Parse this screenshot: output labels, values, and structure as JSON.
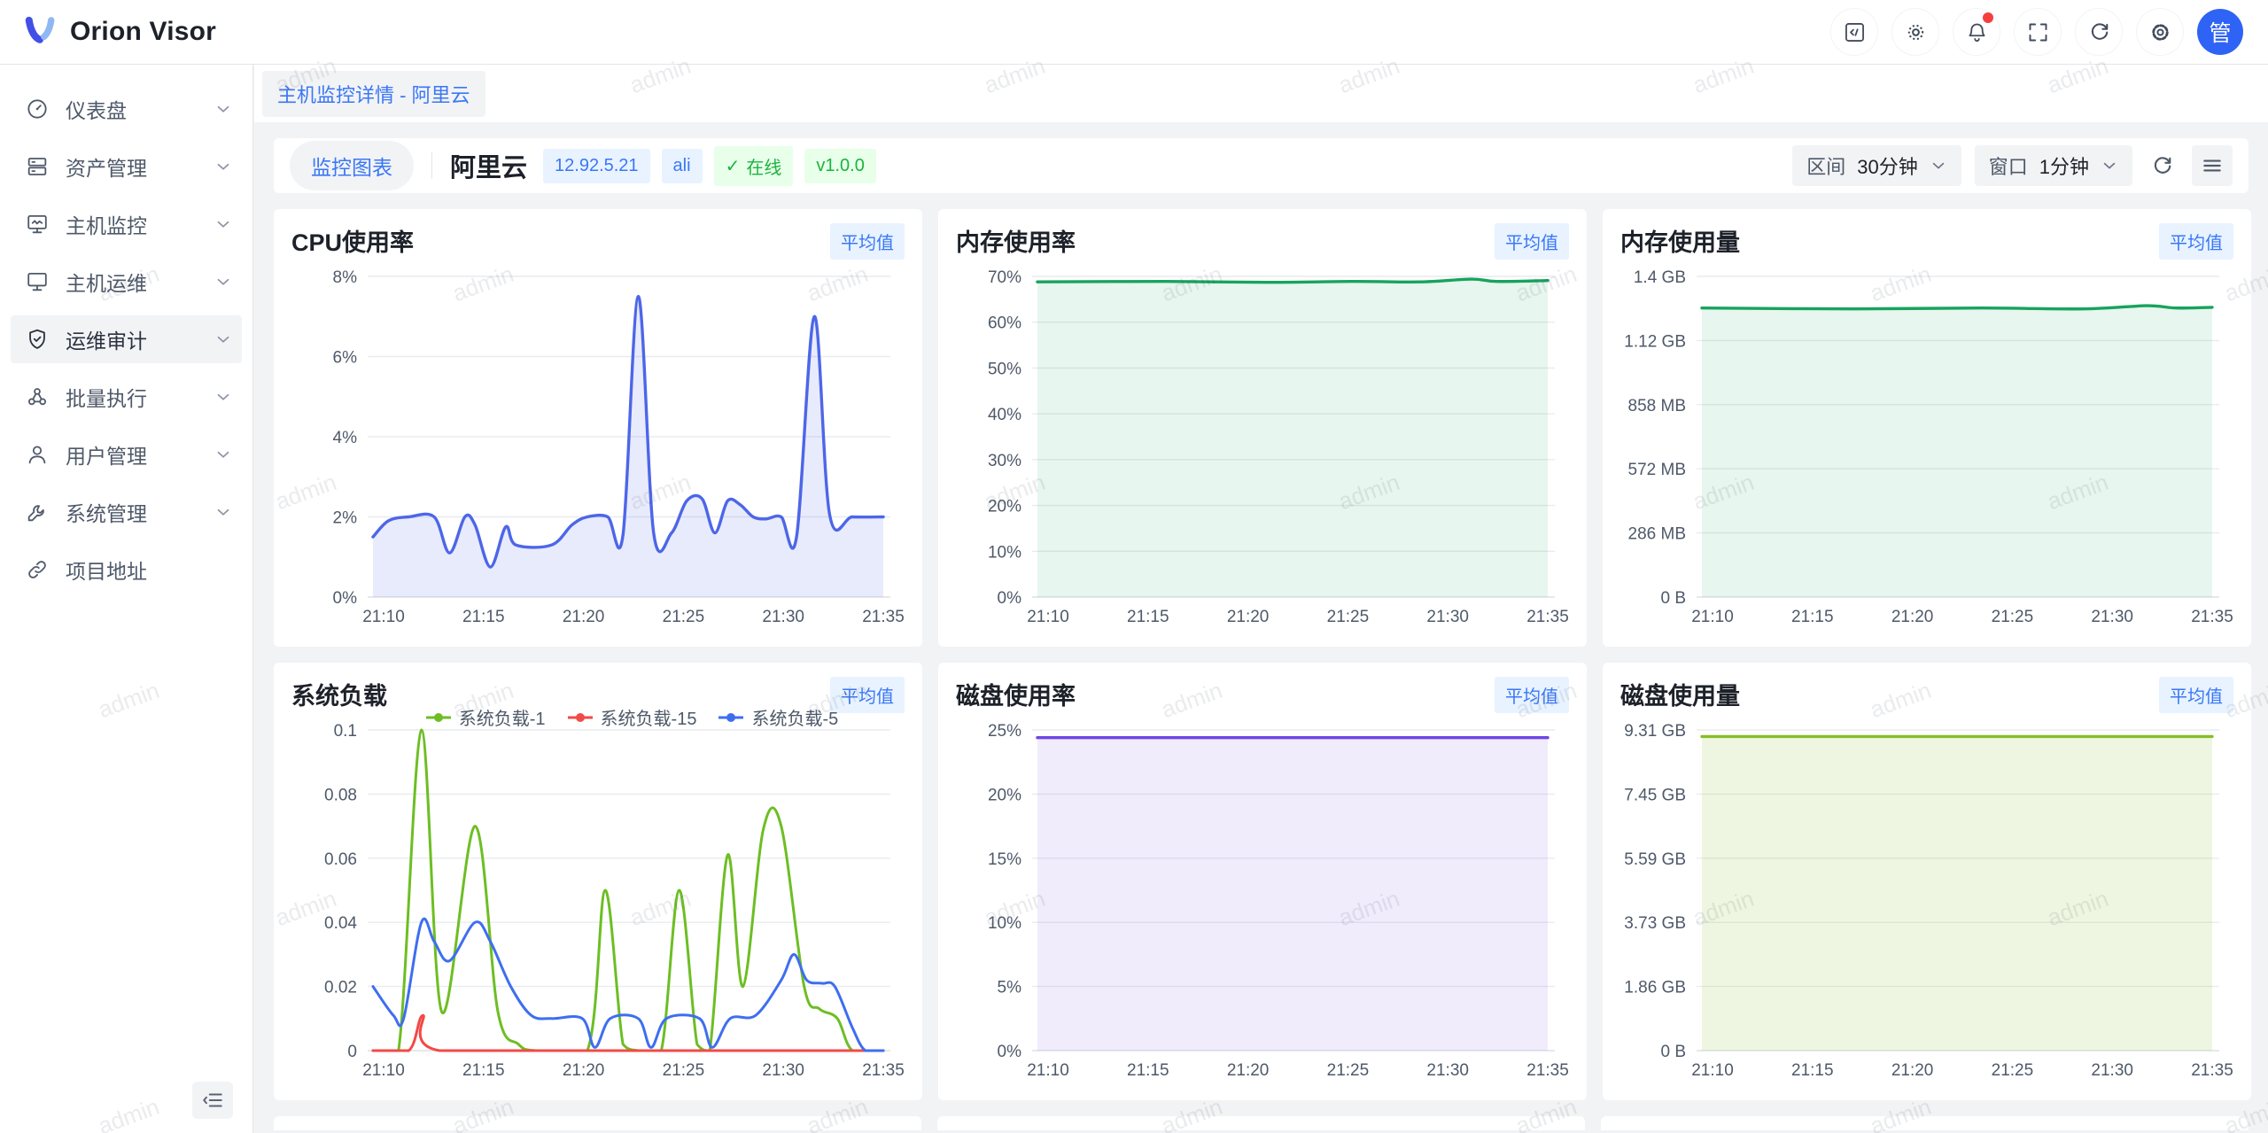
{
  "app": {
    "name": "Orion Visor"
  },
  "topbar": {
    "icons": [
      "code-icon",
      "theme-icon",
      "notifications-icon",
      "fullscreen-icon",
      "refresh-icon",
      "settings-icon"
    ],
    "notification_dot": true,
    "avatar_text": "管"
  },
  "breadcrumb": {
    "label": "主机监控详情 - 阿里云"
  },
  "sidebar": {
    "items": [
      {
        "label": "仪表盘",
        "icon": "dashboard",
        "chevron": true,
        "active": false
      },
      {
        "label": "资产管理",
        "icon": "assets",
        "chevron": true,
        "active": false
      },
      {
        "label": "主机监控",
        "icon": "host-monitor",
        "chevron": true,
        "active": false
      },
      {
        "label": "主机运维",
        "icon": "host-ops",
        "chevron": true,
        "active": false
      },
      {
        "label": "运维审计",
        "icon": "audit",
        "chevron": true,
        "active": true
      },
      {
        "label": "批量执行",
        "icon": "batch",
        "chevron": true,
        "active": false
      },
      {
        "label": "用户管理",
        "icon": "users",
        "chevron": true,
        "active": false
      },
      {
        "label": "系统管理",
        "icon": "system",
        "chevron": true,
        "active": false
      },
      {
        "label": "项目地址",
        "icon": "link",
        "chevron": false,
        "active": false
      }
    ]
  },
  "toolbar": {
    "view_tab": "监控图表",
    "host_name": "阿里云",
    "tags": [
      {
        "text": "12.92.5.21",
        "style": "blue",
        "check": false
      },
      {
        "text": "ali",
        "style": "blue",
        "check": false
      },
      {
        "text": "在线",
        "style": "green",
        "check": true
      },
      {
        "text": "v1.0.0",
        "style": "green",
        "check": false
      }
    ],
    "interval_label": "区间",
    "interval_value": "30分钟",
    "window_label": "窗口",
    "window_value": "1分钟"
  },
  "watermark": {
    "text": "admin"
  },
  "chart_data": [
    {
      "type": "line",
      "title": "CPU使用率",
      "badge": "平均值",
      "ylim": [
        0,
        8
      ],
      "y_tick_labels": [
        "8%",
        "6%",
        "4%",
        "2%",
        "0%"
      ],
      "x_tick_labels": [
        "21:10",
        "21:15",
        "21:20",
        "21:25",
        "21:30",
        "21:35"
      ],
      "legend": false,
      "series": [
        {
          "name": "CPU使用率",
          "color": "#4D66E8",
          "fill": "rgba(77,102,232,0.13)",
          "points": [
            [
              0,
              1.5
            ],
            [
              0.03,
              1.9
            ],
            [
              0.07,
              2
            ],
            [
              0.12,
              2
            ],
            [
              0.15,
              1.1
            ],
            [
              0.18,
              2
            ],
            [
              0.2,
              1.8
            ],
            [
              0.23,
              0.75
            ],
            [
              0.26,
              1.75
            ],
            [
              0.28,
              1.3
            ],
            [
              0.35,
              1.3
            ],
            [
              0.39,
              1.8
            ],
            [
              0.42,
              2
            ],
            [
              0.46,
              2
            ],
            [
              0.49,
              1.55
            ],
            [
              0.52,
              7.5
            ],
            [
              0.55,
              1.6
            ],
            [
              0.585,
              1.6
            ],
            [
              0.615,
              2.4
            ],
            [
              0.645,
              2.45
            ],
            [
              0.67,
              1.6
            ],
            [
              0.695,
              2.4
            ],
            [
              0.72,
              2.3
            ],
            [
              0.745,
              2
            ],
            [
              0.77,
              1.95
            ],
            [
              0.8,
              2
            ],
            [
              0.83,
              1.5
            ],
            [
              0.865,
              7
            ],
            [
              0.895,
              2.05
            ],
            [
              0.94,
              2
            ],
            [
              1,
              2
            ]
          ]
        }
      ]
    },
    {
      "type": "line",
      "title": "内存使用率",
      "badge": "平均值",
      "ylim": [
        0,
        70
      ],
      "y_tick_labels": [
        "70%",
        "60%",
        "50%",
        "40%",
        "30%",
        "20%",
        "10%",
        "0%"
      ],
      "x_tick_labels": [
        "21:10",
        "21:15",
        "21:20",
        "21:25",
        "21:30",
        "21:35"
      ],
      "legend": false,
      "series": [
        {
          "name": "内存使用率",
          "color": "#17A35D",
          "fill": "rgba(23,163,93,0.10)",
          "points": [
            [
              0,
              68.8
            ],
            [
              0.25,
              68.9
            ],
            [
              0.45,
              68.7
            ],
            [
              0.62,
              68.9
            ],
            [
              0.75,
              68.8
            ],
            [
              0.85,
              69.4
            ],
            [
              0.9,
              68.9
            ],
            [
              1,
              69.1
            ]
          ]
        }
      ]
    },
    {
      "type": "line",
      "title": "内存使用量",
      "badge": "平均值",
      "ylim": [
        0,
        1.4
      ],
      "y_tick_labels": [
        "1.4 GB",
        "1.12 GB",
        "858 MB",
        "572 MB",
        "286 MB",
        "0 B"
      ],
      "x_tick_labels": [
        "21:10",
        "21:15",
        "21:20",
        "21:25",
        "21:30",
        "21:35"
      ],
      "legend": false,
      "series": [
        {
          "name": "内存使用量",
          "color": "#17A35D",
          "fill": "rgba(23,163,93,0.10)",
          "points": [
            [
              0,
              1.262
            ],
            [
              0.3,
              1.258
            ],
            [
              0.55,
              1.262
            ],
            [
              0.75,
              1.258
            ],
            [
              0.87,
              1.272
            ],
            [
              0.93,
              1.262
            ],
            [
              1,
              1.265
            ]
          ]
        }
      ]
    },
    {
      "type": "line",
      "title": "系统负载",
      "badge": "平均值",
      "ylim": [
        0,
        0.1
      ],
      "y_tick_labels": [
        "0.1",
        "0.08",
        "0.06",
        "0.04",
        "0.02",
        "0"
      ],
      "x_tick_labels": [
        "21:10",
        "21:15",
        "21:20",
        "21:25",
        "21:30",
        "21:35"
      ],
      "legend": true,
      "series": [
        {
          "name": "系统负载-1",
          "color": "#6DBE23",
          "fill": "none",
          "points": [
            [
              0,
              0
            ],
            [
              0.05,
              0
            ],
            [
              0.095,
              0.1
            ],
            [
              0.135,
              0.012
            ],
            [
              0.2,
              0.07
            ],
            [
              0.245,
              0.012
            ],
            [
              0.285,
              0.002
            ],
            [
              0.32,
              0
            ],
            [
              0.42,
              0
            ],
            [
              0.455,
              0.05
            ],
            [
              0.49,
              0.002
            ],
            [
              0.52,
              0
            ],
            [
              0.565,
              0
            ],
            [
              0.6,
              0.05
            ],
            [
              0.635,
              0.002
            ],
            [
              0.66,
              0
            ],
            [
              0.695,
              0.061
            ],
            [
              0.725,
              0.02
            ],
            [
              0.765,
              0.069
            ],
            [
              0.8,
              0.07
            ],
            [
              0.845,
              0.02
            ],
            [
              0.875,
              0.013
            ],
            [
              0.91,
              0.01
            ],
            [
              0.94,
              0
            ],
            [
              1,
              0
            ]
          ]
        },
        {
          "name": "系统负载-15",
          "color": "#F24A46",
          "fill": "none",
          "points": [
            [
              0,
              0
            ],
            [
              0.07,
              0
            ],
            [
              0.098,
              0.011
            ],
            [
              0.13,
              0
            ],
            [
              0.5,
              0
            ],
            [
              1,
              0
            ]
          ]
        },
        {
          "name": "系统负载-5",
          "color": "#3E6EF0",
          "fill": "none",
          "points": [
            [
              0,
              0.02
            ],
            [
              0.04,
              0.011
            ],
            [
              0.06,
              0.01
            ],
            [
              0.095,
              0.04
            ],
            [
              0.12,
              0.034
            ],
            [
              0.15,
              0.028
            ],
            [
              0.2,
              0.04
            ],
            [
              0.23,
              0.034
            ],
            [
              0.27,
              0.02
            ],
            [
              0.31,
              0.011
            ],
            [
              0.35,
              0.01
            ],
            [
              0.41,
              0.01
            ],
            [
              0.435,
              0.001
            ],
            [
              0.465,
              0.01
            ],
            [
              0.52,
              0.01
            ],
            [
              0.545,
              0.001
            ],
            [
              0.575,
              0.01
            ],
            [
              0.64,
              0.01
            ],
            [
              0.665,
              0.001
            ],
            [
              0.7,
              0.01
            ],
            [
              0.75,
              0.011
            ],
            [
              0.8,
              0.022
            ],
            [
              0.825,
              0.03
            ],
            [
              0.85,
              0.022
            ],
            [
              0.88,
              0.021
            ],
            [
              0.905,
              0.02
            ],
            [
              0.94,
              0.007
            ],
            [
              0.965,
              0
            ],
            [
              1,
              0
            ]
          ]
        }
      ]
    },
    {
      "type": "line",
      "title": "磁盘使用率",
      "badge": "平均值",
      "ylim": [
        0,
        25
      ],
      "y_tick_labels": [
        "25%",
        "20%",
        "15%",
        "10%",
        "5%",
        "0%"
      ],
      "x_tick_labels": [
        "21:10",
        "21:15",
        "21:20",
        "21:25",
        "21:30",
        "21:35"
      ],
      "legend": false,
      "series": [
        {
          "name": "磁盘使用率",
          "color": "#6E44E4",
          "fill": "rgba(110,68,228,0.10)",
          "points": [
            [
              0,
              24.4
            ],
            [
              0.5,
              24.4
            ],
            [
              1,
              24.4
            ]
          ]
        }
      ]
    },
    {
      "type": "line",
      "title": "磁盘使用量",
      "badge": "平均值",
      "ylim": [
        0,
        9.31
      ],
      "y_tick_labels": [
        "9.31 GB",
        "7.45 GB",
        "5.59 GB",
        "3.73 GB",
        "1.86 GB",
        "0 B"
      ],
      "x_tick_labels": [
        "21:10",
        "21:15",
        "21:20",
        "21:25",
        "21:30",
        "21:35"
      ],
      "legend": false,
      "series": [
        {
          "name": "磁盘使用量",
          "color": "#85BE28",
          "fill": "rgba(133,190,40,0.14)",
          "points": [
            [
              0,
              9.12
            ],
            [
              0.5,
              9.12
            ],
            [
              1,
              9.12
            ]
          ]
        }
      ]
    }
  ]
}
